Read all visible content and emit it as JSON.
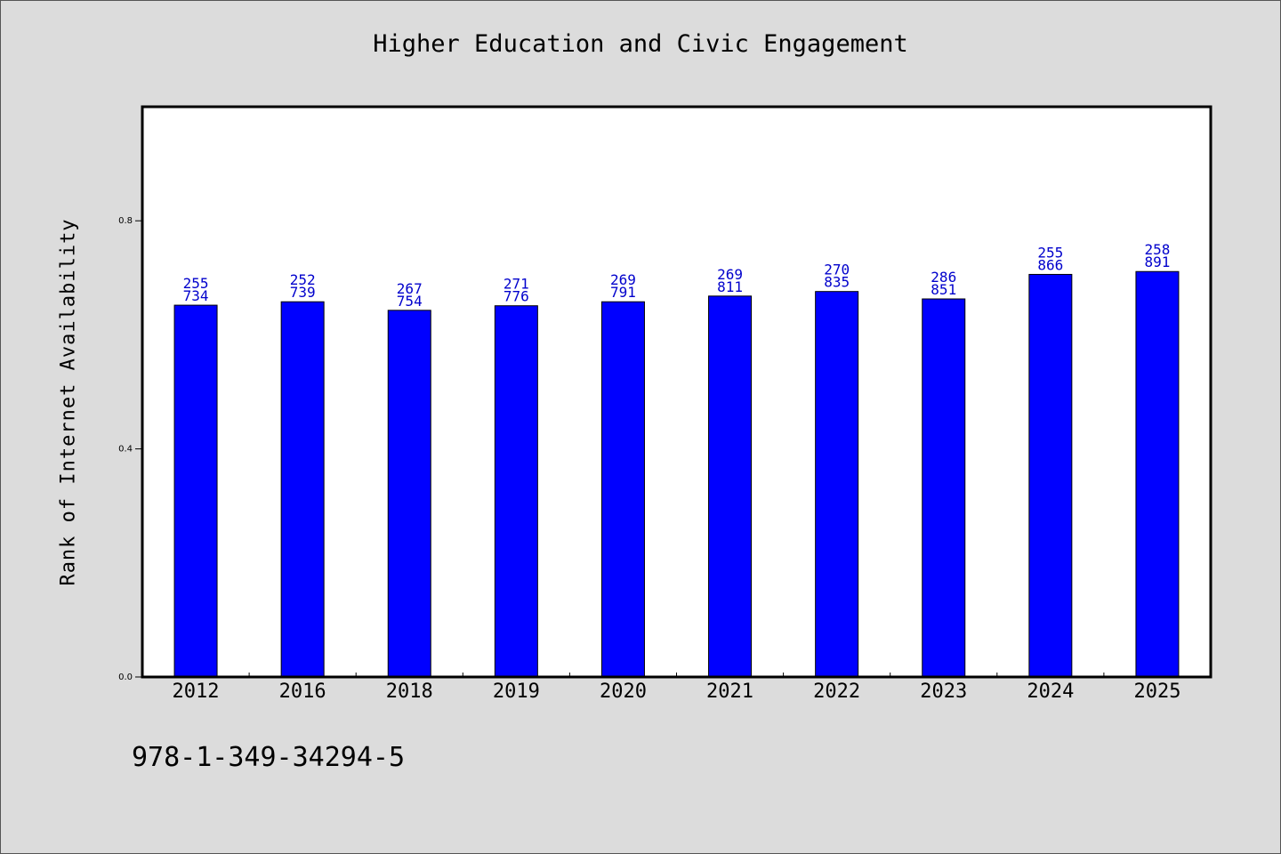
{
  "chart_data": {
    "type": "bar",
    "title": "Higher Education and Civic Engagement",
    "ylabel": "Rank of Internet Availability",
    "xlabel": "",
    "categories": [
      "2012",
      "2016",
      "2018",
      "2019",
      "2020",
      "2021",
      "2022",
      "2023",
      "2024",
      "2025"
    ],
    "series": [
      {
        "values": [
          0.652,
          0.658,
          0.643,
          0.651,
          0.658,
          0.668,
          0.676,
          0.663,
          0.706,
          0.711
        ],
        "color": "#0000ff",
        "labels_top": [
          "255",
          "252",
          "267",
          "271",
          "269",
          "269",
          "270",
          "286",
          "255",
          "258"
        ],
        "labels_bottom": [
          "734",
          "739",
          "754",
          "776",
          "791",
          "811",
          "835",
          "851",
          "866",
          "891"
        ]
      }
    ],
    "ylim": [
      0,
      1.0
    ],
    "yticks": [
      "0.0",
      "0.4",
      "0.8"
    ],
    "grid": false,
    "label_color": "#0000cc"
  },
  "footer": {
    "text": "978-1-349-34294-5"
  }
}
